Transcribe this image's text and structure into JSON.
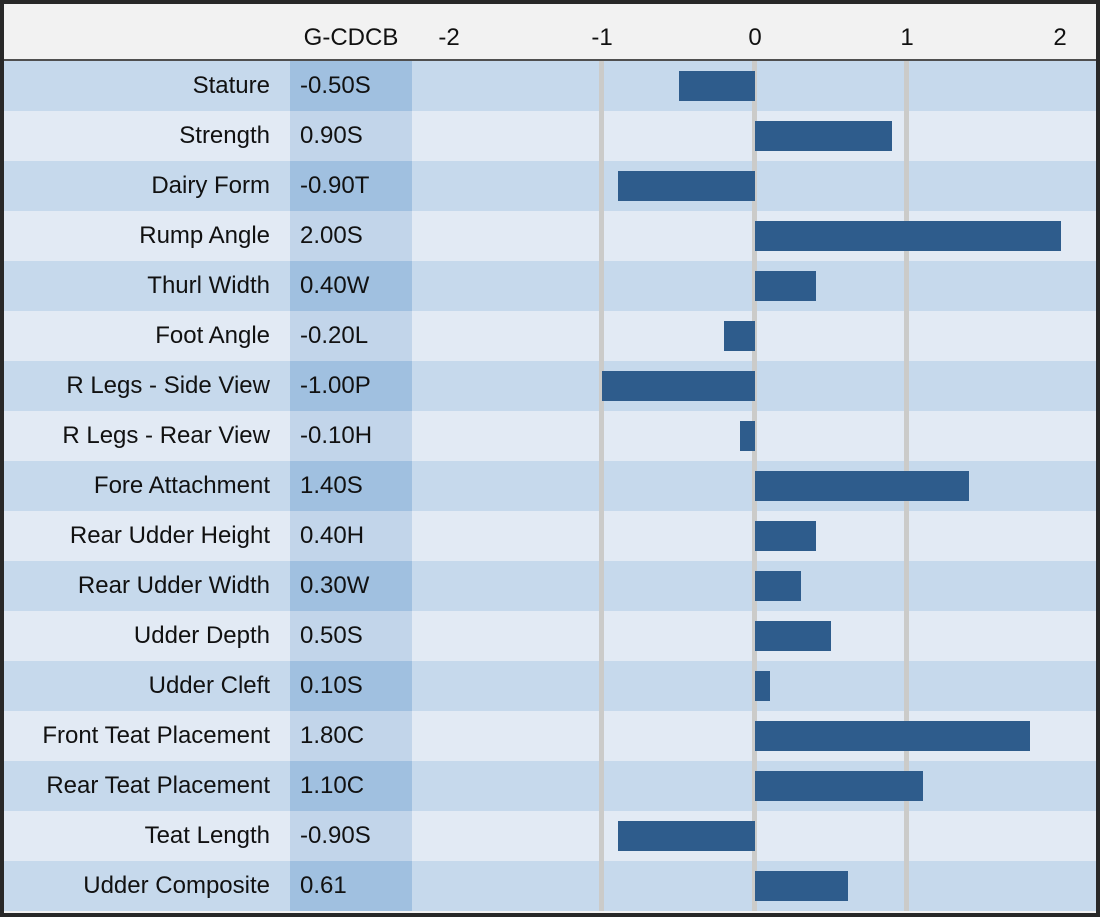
{
  "chart_data": {
    "type": "bar",
    "orientation": "horizontal",
    "title": "",
    "column_header": "G-CDCB",
    "categories": [
      "Stature",
      "Strength",
      "Dairy Form",
      "Rump Angle",
      "Thurl Width",
      "Foot Angle",
      "R Legs - Side View",
      "R Legs - Rear View",
      "Fore Attachment",
      "Rear Udder Height",
      "Rear Udder Width",
      "Udder Depth",
      "Udder Cleft",
      "Front Teat Placement",
      "Rear Teat Placement",
      "Teat Length",
      "Udder Composite"
    ],
    "value_labels": [
      "-0.50S",
      "0.90S",
      "-0.90T",
      "2.00S",
      "0.40W",
      "-0.20L",
      "-1.00P",
      "-0.10H",
      "1.40S",
      "0.40H",
      "0.30W",
      "0.50S",
      "0.10S",
      "1.80C",
      "1.10C",
      "-0.90S",
      "0.61"
    ],
    "values": [
      -0.5,
      0.9,
      -0.9,
      2.0,
      0.4,
      -0.2,
      -1.0,
      -0.1,
      1.4,
      0.4,
      0.3,
      0.5,
      0.1,
      1.8,
      1.1,
      -0.9,
      0.61
    ],
    "axis_tick_labels": [
      "-2",
      "-1",
      "0",
      "1",
      "2"
    ],
    "axis_tick_values": [
      -2,
      -1,
      0,
      1,
      2
    ],
    "gridlines_at": [
      -1,
      0,
      1
    ],
    "xlim": [
      -2.25,
      2.23
    ],
    "legend": "none",
    "grid": "vertical-major-only"
  },
  "colors": {
    "bar": "#2e5c8c",
    "row_dark": "#c6d9ec",
    "row_light": "#e2eaf4",
    "value_cell_dark": "#a0c0e0",
    "value_cell_light": "#c2d5ea",
    "header_bg": "#f2f2f2",
    "gridline": "#cbcbc9",
    "frame_border": "#282828",
    "text": "#111111"
  }
}
